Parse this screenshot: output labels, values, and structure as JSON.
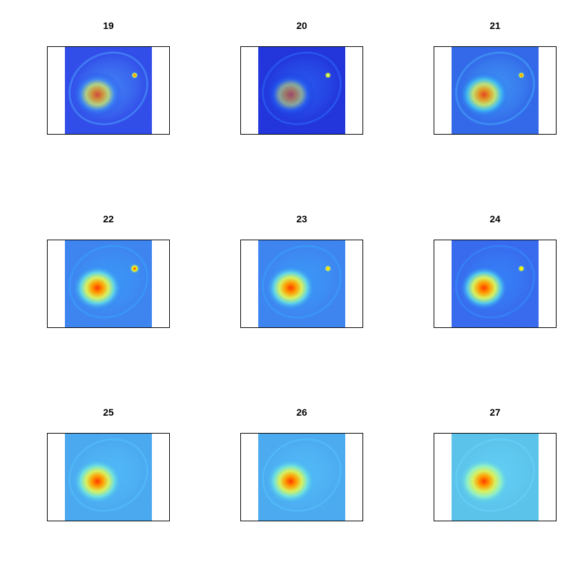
{
  "panels": [
    {
      "label": "19",
      "bg": "#1c3cf0",
      "cell": "#3f8ff2",
      "nucleus_opacity": 0.75,
      "hot_spot": "#ff2a00",
      "hot_spot2": "#59e8ff",
      "halo": "#4fb0ff",
      "noise": "#0a22e0"
    },
    {
      "label": "20",
      "bg": "#0a20e0",
      "cell": "#2a6af0",
      "nucleus_opacity": 0.55,
      "hot_spot": "#7dffe6",
      "hot_spot2": "#2a6af0",
      "halo": "#2f78ff",
      "noise": "#0612c8"
    },
    {
      "label": "21",
      "bg": "#1d5cf0",
      "cell": "#44c8f0",
      "nucleus_opacity": 0.85,
      "hot_spot": "#ff3300",
      "hot_spot2": "#44c8f0",
      "halo": "#49b6ff",
      "noise": "#1140e6"
    },
    {
      "label": "22",
      "bg": "#2a7cf8",
      "cell": "#5fd4e8",
      "nucleus_opacity": 1,
      "hot_spot": "#ff2200",
      "hot_spot2": "#5fd4e8",
      "halo": "#38a8ff",
      "noise": "#1f55ee"
    },
    {
      "label": "23",
      "bg": "#2a7cf8",
      "cell": "#5fd4e8",
      "nucleus_opacity": 1,
      "hot_spot": "#ffb000",
      "hot_spot2": "#5fd4e8",
      "halo": "#38a8ff",
      "noise": "#1f55ee"
    },
    {
      "label": "24",
      "bg": "#235ef6",
      "cell": "#52c8ec",
      "nucleus_opacity": 1,
      "hot_spot": "#ffe000",
      "hot_spot2": "#52c8ec",
      "halo": "#3396ff",
      "noise": "#1744e4"
    },
    {
      "label": "25",
      "bg": "#39a6f8",
      "cell": "#6ee0e0",
      "nucleus_opacity": 1,
      "hot_spot": "#6ee0e0",
      "hot_spot2": "#6ee0e0",
      "halo": "#57c8ff",
      "noise": "#2878ee"
    },
    {
      "label": "26",
      "bg": "#3aa8f8",
      "cell": "#6ee0e0",
      "nucleus_opacity": 1,
      "hot_spot": "#6ee0e0",
      "hot_spot2": "#6ee0e0",
      "halo": "#57c8ff",
      "noise": "#2878ee"
    },
    {
      "label": "27",
      "bg": "#4cc4f2",
      "cell": "#8ff0c8",
      "nucleus_opacity": 1,
      "hot_spot": "#8ff0c8",
      "hot_spot2": "#8ff0c8",
      "halo": "#6ad7ff",
      "noise": "#3294ef"
    }
  ]
}
